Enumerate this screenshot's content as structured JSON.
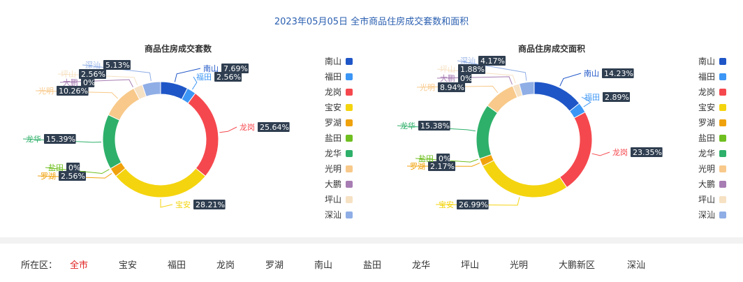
{
  "page_title": "2023年05月05日 全市商品住房成交套数和面积",
  "colors": {
    "南山": "#1f56c7",
    "福田": "#3c96f5",
    "龙岗": "#f5484e",
    "宝安": "#f4d40f",
    "罗湖": "#f0a20c",
    "盐田": "#6fbf20",
    "龙华": "#2eb06a",
    "光明": "#f8c98a",
    "大鹏": "#a77db3",
    "坪山": "#f6e1c3",
    "深汕": "#90aee6"
  },
  "chart_data": [
    {
      "type": "pie",
      "title": "商品住房成交套数",
      "legend": [
        "南山",
        "福田",
        "龙岗",
        "宝安",
        "罗湖",
        "盐田",
        "龙华",
        "光明",
        "大鹏",
        "坪山",
        "深汕"
      ],
      "slices": [
        {
          "name": "南山",
          "value": 7.69,
          "label": "7.69%"
        },
        {
          "name": "福田",
          "value": 2.56,
          "label": "2.56%"
        },
        {
          "name": "龙岗",
          "value": 25.64,
          "label": "25.64%"
        },
        {
          "name": "宝安",
          "value": 28.21,
          "label": "28.21%"
        },
        {
          "name": "罗湖",
          "value": 2.56,
          "label": "2.56%"
        },
        {
          "name": "盐田",
          "value": 0,
          "label": "0%"
        },
        {
          "name": "龙华",
          "value": 15.39,
          "label": "15.39%"
        },
        {
          "name": "光明",
          "value": 10.26,
          "label": "10.26%"
        },
        {
          "name": "大鹏",
          "value": 0,
          "label": "0%"
        },
        {
          "name": "坪山",
          "value": 2.56,
          "label": "2.56%"
        },
        {
          "name": "深汕",
          "value": 5.13,
          "label": "5.13%"
        }
      ]
    },
    {
      "type": "pie",
      "title": "商品住房成交面积",
      "legend": [
        "南山",
        "福田",
        "龙岗",
        "宝安",
        "罗湖",
        "盐田",
        "龙华",
        "光明",
        "大鹏",
        "坪山",
        "深汕"
      ],
      "slices": [
        {
          "name": "南山",
          "value": 14.23,
          "label": "14.23%"
        },
        {
          "name": "福田",
          "value": 2.89,
          "label": "2.89%"
        },
        {
          "name": "龙岗",
          "value": 23.35,
          "label": "23.35%"
        },
        {
          "name": "宝安",
          "value": 26.99,
          "label": "26.99%"
        },
        {
          "name": "罗湖",
          "value": 2.17,
          "label": "2.17%"
        },
        {
          "name": "盐田",
          "value": 0,
          "label": "0%"
        },
        {
          "name": "龙华",
          "value": 15.38,
          "label": "15.38%"
        },
        {
          "name": "光明",
          "value": 8.94,
          "label": "8.94%"
        },
        {
          "name": "大鹏",
          "value": 0,
          "label": "0%"
        },
        {
          "name": "坪山",
          "value": 1.88,
          "label": "1.88%"
        },
        {
          "name": "深汕",
          "value": 4.17,
          "label": "4.17%"
        }
      ]
    }
  ],
  "district_filter": {
    "prefix": "所在区：",
    "selected": "全市",
    "items": [
      "全市",
      "宝安",
      "福田",
      "龙岗",
      "罗湖",
      "南山",
      "盐田",
      "龙华",
      "坪山",
      "光明",
      "大鹏新区",
      "深汕"
    ]
  }
}
